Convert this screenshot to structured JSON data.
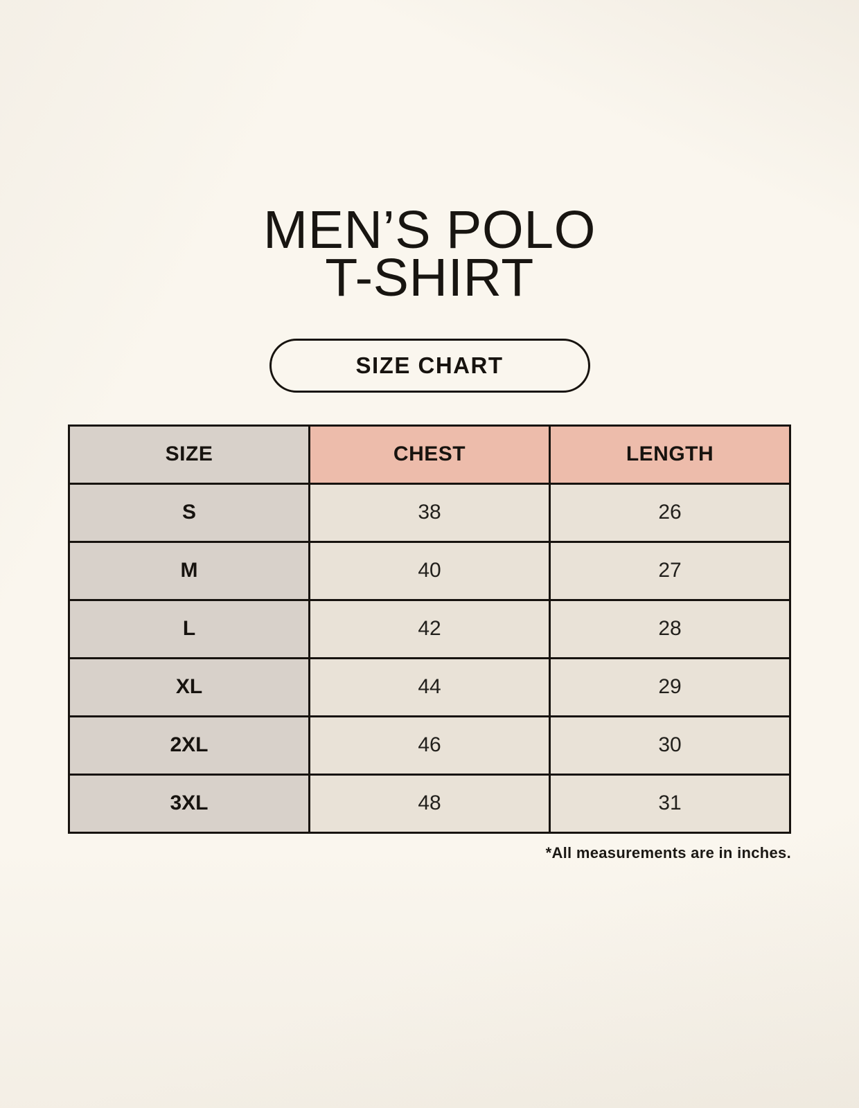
{
  "page": {
    "title_line1": "MEN’S POLO",
    "title_line2": "T-SHIRT",
    "badge_label": "SIZE CHART",
    "footnote": "*All measurements are in inches."
  },
  "chart_data": {
    "type": "table",
    "title": "MEN’S POLO T-SHIRT",
    "subtitle": "SIZE CHART",
    "columns": [
      "SIZE",
      "CHEST",
      "LENGTH"
    ],
    "rows": [
      [
        "S",
        "38",
        "26"
      ],
      [
        "M",
        "40",
        "27"
      ],
      [
        "L",
        "42",
        "28"
      ],
      [
        "XL",
        "44",
        "29"
      ],
      [
        "2XL",
        "46",
        "30"
      ],
      [
        "3XL",
        "48",
        "31"
      ]
    ],
    "footnote": "*All measurements are in inches.",
    "units": "inches"
  },
  "colors": {
    "background": "#faf6ee",
    "header_accent": "#edbcab",
    "size_column_gray": "#d8d1ca",
    "data_cell_cream": "#e9e2d7",
    "border": "#17130f",
    "text": "#181511"
  }
}
